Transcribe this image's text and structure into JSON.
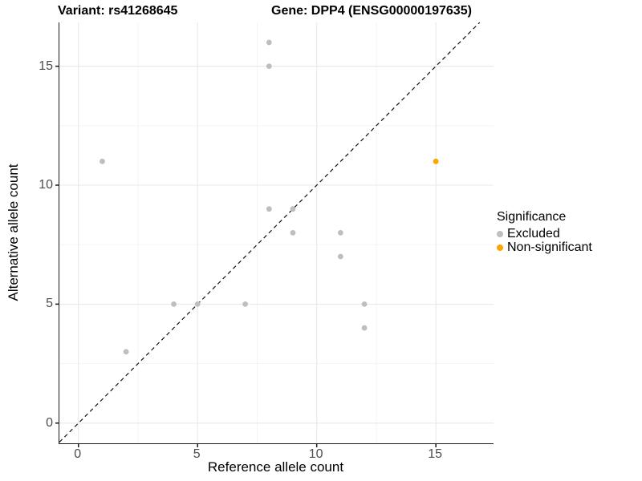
{
  "titles": {
    "variant": "Variant: rs41268645",
    "gene": "Gene: DPP4 (ENSG00000197635)"
  },
  "axes": {
    "x": {
      "label": "Reference allele count",
      "ticks": [
        0,
        5,
        10,
        15
      ],
      "minor_ticks": [
        2.5,
        7.5,
        12.5
      ]
    },
    "y": {
      "label": "Alternative allele count",
      "ticks": [
        0,
        5,
        10,
        15
      ],
      "minor_ticks": [
        2.5,
        7.5,
        12.5
      ]
    }
  },
  "legend": {
    "title": "Significance",
    "items": [
      {
        "label": "Excluded",
        "color": "#BEBEBE"
      },
      {
        "label": "Non-significant",
        "color": "#FFA500"
      }
    ]
  },
  "chart_data": {
    "type": "scatter",
    "title": "Variant: rs41268645 | Gene: DPP4 (ENSG00000197635)",
    "xlabel": "Reference allele count",
    "ylabel": "Alternative allele count",
    "xlim": [
      -0.8,
      17.42
    ],
    "ylim": [
      -0.85,
      16.84
    ],
    "grid": "major and minor, light gray",
    "legend_position": "right",
    "reference_line": {
      "type": "identity y=x",
      "style": "dashed",
      "color": "#111111"
    },
    "series": [
      {
        "name": "Excluded",
        "color": "#BEBEBE",
        "points": [
          [
            1,
            11
          ],
          [
            2,
            3
          ],
          [
            4,
            5
          ],
          [
            5,
            5
          ],
          [
            7,
            5
          ],
          [
            8,
            16
          ],
          [
            8,
            15
          ],
          [
            8,
            9
          ],
          [
            9,
            9
          ],
          [
            9,
            8
          ],
          [
            11,
            8
          ],
          [
            11,
            7
          ],
          [
            12,
            5
          ],
          [
            12,
            4
          ]
        ]
      },
      {
        "name": "Non-significant",
        "color": "#FFA500",
        "points": [
          [
            15,
            11
          ]
        ]
      }
    ]
  },
  "colors": {
    "excluded": "#BEBEBE",
    "non_significant": "#FFA500",
    "axis_line": "#1a1a1a",
    "major_grid": "#e8e8e8",
    "minor_grid": "#f3f3f3",
    "tick_text": "#4d4d4d"
  }
}
